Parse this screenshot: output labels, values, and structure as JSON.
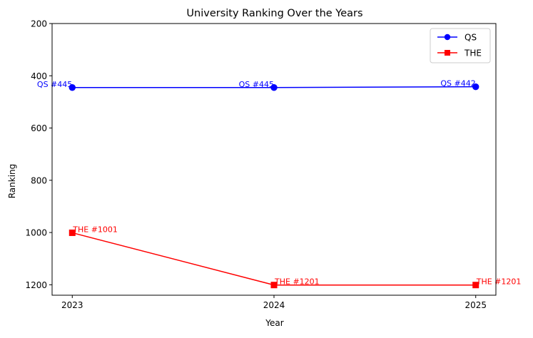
{
  "chart_data": {
    "type": "line",
    "title": "University Ranking Over the Years",
    "xlabel": "Year",
    "ylabel": "Ranking",
    "x": [
      2023,
      2024,
      2025
    ],
    "x_ticks": [
      "2023",
      "2024",
      "2025"
    ],
    "y_ticks": [
      200,
      400,
      600,
      800,
      1000,
      1200
    ],
    "ylim": [
      1240,
      200
    ],
    "y_inverted": true,
    "grid": false,
    "legend_position": "top-right",
    "series": [
      {
        "name": "QS",
        "values": [
          445,
          445,
          442
        ],
        "labels": [
          "QS #445",
          "QS #445",
          "QS #442"
        ],
        "color": "#0000ff",
        "marker": "circle"
      },
      {
        "name": "THE",
        "values": [
          1001,
          1201,
          1201
        ],
        "labels": [
          "THE #1001",
          "THE #1201",
          "THE #1201"
        ],
        "color": "#ff0000",
        "marker": "square"
      }
    ]
  }
}
